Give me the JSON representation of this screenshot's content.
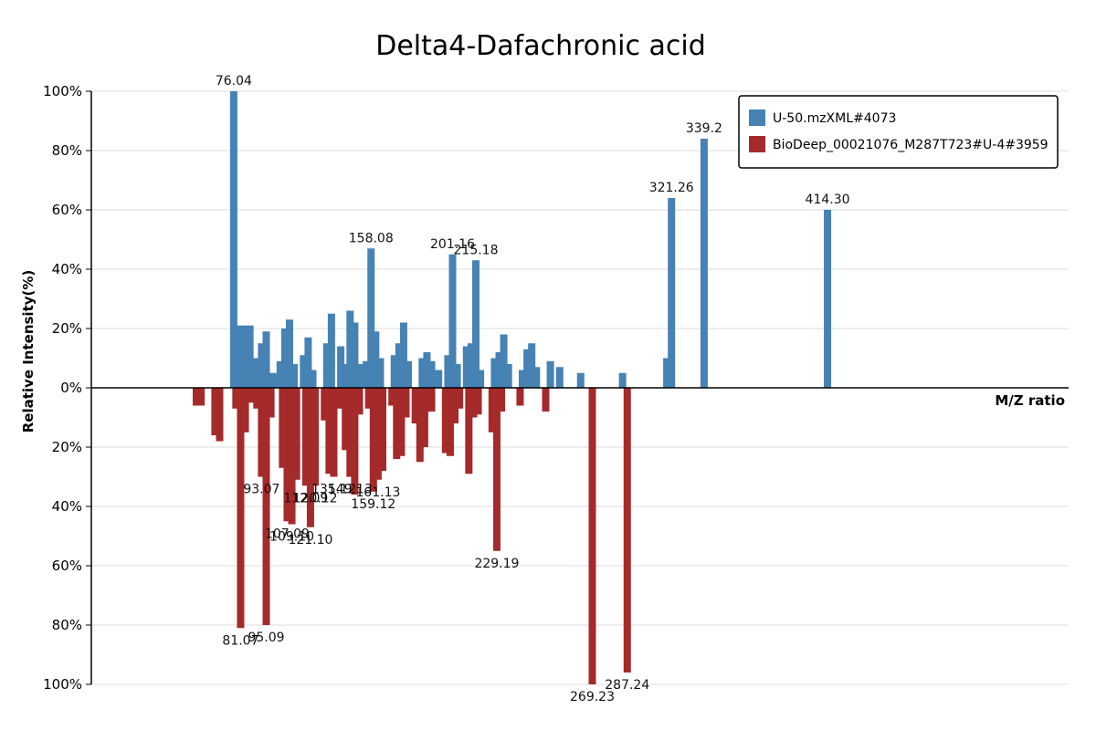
{
  "chart_data": {
    "type": "bar",
    "title": "Delta4-Dafachronic acid",
    "xlabel": "M/Z ratio",
    "ylabel": "Relative Intensity(%)",
    "y_ticks_top": [
      "100%",
      "80%",
      "60%",
      "40%",
      "20%",
      "0%"
    ],
    "y_ticks_bottom": [
      "20%",
      "40%",
      "60%",
      "80%",
      "100%"
    ],
    "ylim": [
      -100,
      100
    ],
    "xlim": [
      20,
      460
    ],
    "legend_position": "top-right",
    "grid": true,
    "series": [
      {
        "name": "U-50.mzXML#4073",
        "color": "#4682B4",
        "direction": "up",
        "points": [
          {
            "x": 76.04,
            "y": 100,
            "label": "76.04"
          },
          {
            "x": 79.0,
            "y": 21
          },
          {
            "x": 81.0,
            "y": 21
          },
          {
            "x": 83.0,
            "y": 21
          },
          {
            "x": 86.0,
            "y": 10
          },
          {
            "x": 88.0,
            "y": 15
          },
          {
            "x": 90.0,
            "y": 19
          },
          {
            "x": 93.0,
            "y": 5
          },
          {
            "x": 96.0,
            "y": 9
          },
          {
            "x": 98.0,
            "y": 20
          },
          {
            "x": 100.0,
            "y": 23
          },
          {
            "x": 102.0,
            "y": 8
          },
          {
            "x": 106.0,
            "y": 11
          },
          {
            "x": 108.0,
            "y": 17
          },
          {
            "x": 110.0,
            "y": 6
          },
          {
            "x": 116.0,
            "y": 15
          },
          {
            "x": 118.0,
            "y": 25
          },
          {
            "x": 122.0,
            "y": 14
          },
          {
            "x": 124.0,
            "y": 8
          },
          {
            "x": 126.0,
            "y": 26
          },
          {
            "x": 128.0,
            "y": 22
          },
          {
            "x": 130.0,
            "y": 8
          },
          {
            "x": 133.0,
            "y": 9
          },
          {
            "x": 135.0,
            "y": 47
          },
          {
            "x": 137.0,
            "y": 19
          },
          {
            "x": 139.0,
            "y": 10
          },
          {
            "x": 145.0,
            "y": 11
          },
          {
            "x": 147.0,
            "y": 15
          },
          {
            "x": 149.0,
            "y": 22
          },
          {
            "x": 151.0,
            "y": 9
          },
          {
            "x": 157.0,
            "y": 10
          },
          {
            "x": 159.0,
            "y": 12
          },
          {
            "x": 161.0,
            "y": 9
          },
          {
            "x": 164.0,
            "y": 6
          },
          {
            "x": 168.0,
            "y": 11
          },
          {
            "x": 170.0,
            "y": 45
          },
          {
            "x": 172.0,
            "y": 8
          },
          {
            "x": 176.0,
            "y": 14
          },
          {
            "x": 178.0,
            "y": 15
          },
          {
            "x": 180.0,
            "y": 43
          },
          {
            "x": 182.0,
            "y": 6
          },
          {
            "x": 188.0,
            "y": 10
          },
          {
            "x": 190.0,
            "y": 12
          },
          {
            "x": 192.0,
            "y": 18
          },
          {
            "x": 194.0,
            "y": 8
          },
          {
            "x": 200.0,
            "y": 6
          },
          {
            "x": 202.0,
            "y": 13
          },
          {
            "x": 204.0,
            "y": 15
          },
          {
            "x": 206.0,
            "y": 7
          },
          {
            "x": 212.0,
            "y": 9
          },
          {
            "x": 216.0,
            "y": 7
          },
          {
            "x": 225.0,
            "y": 5
          },
          {
            "x": 243.0,
            "y": 5
          },
          {
            "x": 262.0,
            "y": 10
          },
          {
            "x": 264.0,
            "y": 64,
            "label": "321.26"
          },
          {
            "x": 278.0,
            "y": 84,
            "label": "339.2"
          },
          {
            "x": 331.0,
            "y": 60,
            "label": "414.30"
          }
        ]
      },
      {
        "name": "BioDeep_00021076_M287T723#U-4#3959",
        "color": "#A52A2A",
        "direction": "down",
        "points": [
          {
            "x": 60.0,
            "y": 6
          },
          {
            "x": 62.0,
            "y": 6
          },
          {
            "x": 68.0,
            "y": 16
          },
          {
            "x": 70.0,
            "y": 18
          },
          {
            "x": 77.0,
            "y": 7
          },
          {
            "x": 79.0,
            "y": 81,
            "label": "81.07"
          },
          {
            "x": 81.0,
            "y": 15
          },
          {
            "x": 83.0,
            "y": 5
          },
          {
            "x": 86.0,
            "y": 7
          },
          {
            "x": 88.0,
            "y": 30
          },
          {
            "x": 90.0,
            "y": 80,
            "label": "95.09"
          },
          {
            "x": 92.0,
            "y": 10
          },
          {
            "x": 97.0,
            "y": 27
          },
          {
            "x": 99.0,
            "y": 45
          },
          {
            "x": 101.0,
            "y": 46
          },
          {
            "x": 103.0,
            "y": 31
          },
          {
            "x": 107.0,
            "y": 33
          },
          {
            "x": 109.0,
            "y": 47
          },
          {
            "x": 111.0,
            "y": 33
          },
          {
            "x": 115.0,
            "y": 11
          },
          {
            "x": 117.0,
            "y": 29
          },
          {
            "x": 119.0,
            "y": 30
          },
          {
            "x": 121.0,
            "y": 7
          },
          {
            "x": 124.0,
            "y": 21
          },
          {
            "x": 126.0,
            "y": 30
          },
          {
            "x": 128.0,
            "y": 36
          },
          {
            "x": 130.0,
            "y": 9
          },
          {
            "x": 134.0,
            "y": 7
          },
          {
            "x": 136.0,
            "y": 35
          },
          {
            "x": 138.0,
            "y": 31
          },
          {
            "x": 140.0,
            "y": 28
          },
          {
            "x": 144.0,
            "y": 6
          },
          {
            "x": 146.0,
            "y": 24
          },
          {
            "x": 148.0,
            "y": 23
          },
          {
            "x": 150.0,
            "y": 10
          },
          {
            "x": 154.0,
            "y": 12
          },
          {
            "x": 156.0,
            "y": 25
          },
          {
            "x": 158.0,
            "y": 20
          },
          {
            "x": 161.0,
            "y": 8
          },
          {
            "x": 167.0,
            "y": 22
          },
          {
            "x": 169.0,
            "y": 23
          },
          {
            "x": 171.0,
            "y": 12
          },
          {
            "x": 173.0,
            "y": 7
          },
          {
            "x": 177.0,
            "y": 29
          },
          {
            "x": 179.0,
            "y": 10
          },
          {
            "x": 181.0,
            "y": 9
          },
          {
            "x": 187.0,
            "y": 15
          },
          {
            "x": 189.0,
            "y": 55,
            "label": "229.19"
          },
          {
            "x": 191.0,
            "y": 8
          },
          {
            "x": 199.0,
            "y": 6
          },
          {
            "x": 210.0,
            "y": 8
          },
          {
            "x": 230.0,
            "y": 100,
            "label": "269.23"
          },
          {
            "x": 245.0,
            "y": 96,
            "label": "287.24"
          }
        ]
      }
    ],
    "annotations": [
      {
        "text": "93.07",
        "series": 1,
        "x": 88.0
      },
      {
        "text": "107.09",
        "series": 1,
        "x": 99.0
      },
      {
        "text": "109.10",
        "series": 1,
        "x": 101.0
      },
      {
        "text": "112.09",
        "series": 1,
        "x": 107.0
      },
      {
        "text": "121.10",
        "series": 1,
        "x": 109.0
      },
      {
        "text": "120.12",
        "series": 1,
        "x": 111.0
      },
      {
        "text": "135.12",
        "series": 1,
        "x": 119.0
      },
      {
        "text": "149.13",
        "series": 1,
        "x": 126.0
      },
      {
        "text": "161.13",
        "series": 1,
        "x": 138.0
      },
      {
        "text": "159.12",
        "series": 1,
        "x": 136.0
      },
      {
        "text": "158.08",
        "series": 0,
        "x": 135.0
      },
      {
        "text": "201.16",
        "series": 0,
        "x": 170.0
      },
      {
        "text": "215.18",
        "series": 0,
        "x": 180.0
      }
    ]
  }
}
